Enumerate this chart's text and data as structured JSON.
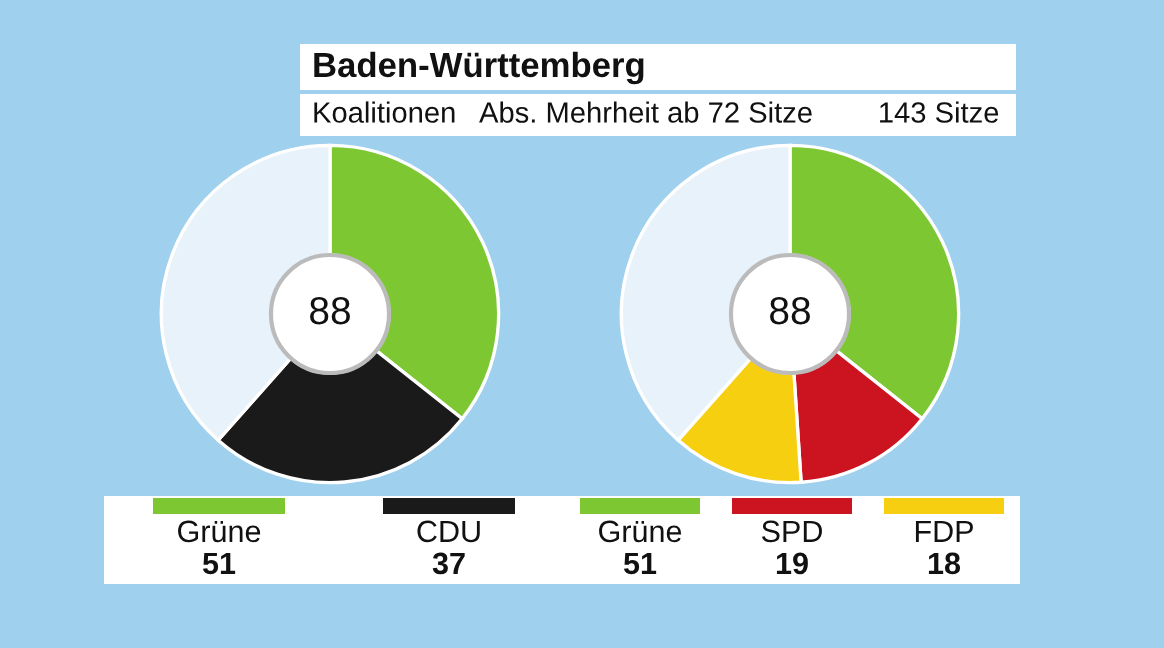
{
  "chart_data": [
    {
      "type": "donut",
      "title": "Baden-Württemberg",
      "subtitle": "Koalitionen   Abs. Mehrheit ab 72 Sitze        143 Sitze",
      "categories": [
        "Grüne",
        "CDU",
        null
      ],
      "values": [
        51,
        37,
        55
      ],
      "colors": [
        "#7dc832",
        "#1a1a1a",
        "#e8f2fa"
      ],
      "annotations": [
        "88"
      ],
      "value_labels": [
        "51",
        "37",
        null
      ],
      "legend": "bottom"
    },
    {
      "type": "donut",
      "categories": [
        "Grüne",
        "SPD",
        "FDP",
        null
      ],
      "values": [
        51,
        19,
        18,
        55
      ],
      "colors": [
        "#7dc832",
        "#cc1420",
        "#f5cf10",
        "#e8f2fa"
      ],
      "annotations": [
        "88"
      ],
      "value_labels": [
        "51",
        "19",
        "18",
        null
      ],
      "legend": "bottom"
    }
  ]
}
